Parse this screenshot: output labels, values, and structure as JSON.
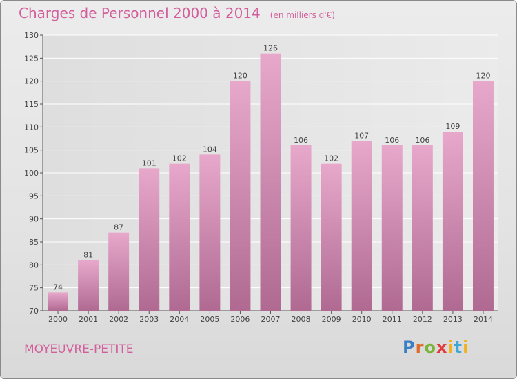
{
  "title": "Charges de Personnel 2000 à 2014",
  "subtitle": "(en milliers d'€)",
  "location": "MOYEUVRE-PETITE",
  "logo": {
    "p": "P",
    "r": "r",
    "o": "o",
    "x": "x",
    "i": "i",
    "t": "t",
    "i2": "i"
  },
  "colors": {
    "bar": "#d68fb6",
    "title": "#d25f9b",
    "axis": "#555555"
  },
  "chart_data": {
    "type": "bar",
    "title": "Charges de Personnel 2000 à 2014",
    "subtitle": "(en milliers d'€)",
    "categories": [
      "2000",
      "2001",
      "2002",
      "2003",
      "2004",
      "2005",
      "2006",
      "2007",
      "2008",
      "2009",
      "2010",
      "2011",
      "2012",
      "2013",
      "2014"
    ],
    "values": [
      74,
      81,
      87,
      101,
      102,
      104,
      120,
      126,
      106,
      102,
      107,
      106,
      106,
      109,
      120
    ],
    "ylim": [
      70,
      130
    ],
    "yticks": [
      70,
      75,
      80,
      85,
      90,
      95,
      100,
      105,
      110,
      115,
      120,
      125,
      130
    ],
    "grid": true,
    "xlabel": "",
    "ylabel": ""
  }
}
